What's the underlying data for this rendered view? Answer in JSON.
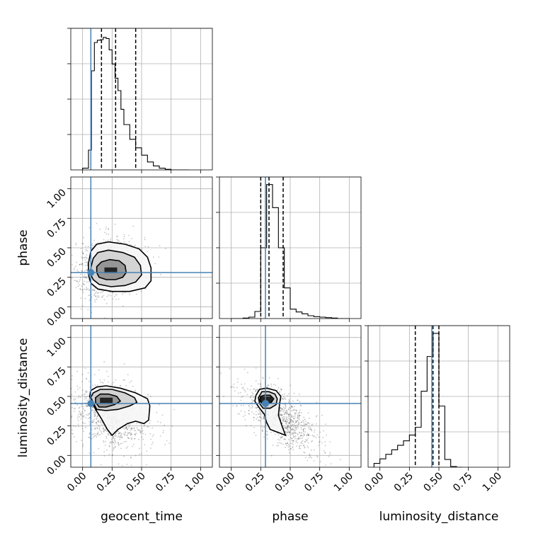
{
  "colors": {
    "truth": "#4682b4",
    "hist": "#000000",
    "grid": "#b0b0b0",
    "density": "#000000"
  },
  "chart_data": {
    "type": "corner",
    "parameters": [
      "geocent_time",
      "phase",
      "luminosity_distance"
    ],
    "axis_range": [
      -0.1,
      1.1
    ],
    "ticks": [
      0.0,
      0.25,
      0.5,
      0.75,
      1.0
    ],
    "tick_labels": [
      "0.00",
      "0.25",
      "0.50",
      "0.75",
      "1.00"
    ],
    "truths": [
      0.07,
      0.29,
      0.44
    ],
    "grid": true,
    "diagonal": [
      {
        "parameter": "geocent_time",
        "bin_edges": [
          0.0,
          0.05,
          0.075,
          0.1,
          0.125,
          0.15,
          0.175,
          0.2,
          0.225,
          0.25,
          0.275,
          0.3,
          0.325,
          0.35,
          0.4,
          0.45,
          0.5,
          0.55,
          0.6,
          0.65,
          0.7,
          0.75,
          0.8,
          0.85,
          0.9
        ],
        "counts": [
          0.3,
          3.5,
          17.5,
          22.5,
          22.9,
          23.0,
          23.4,
          23.2,
          21.2,
          18.7,
          16.2,
          14.0,
          10.7,
          8.0,
          5.4,
          3.9,
          2.6,
          1.4,
          0.7,
          0.3,
          0.1,
          0.0,
          0.0,
          0.0
        ],
        "ymax": 25,
        "quantiles": [
          0.16,
          0.28,
          0.45
        ]
      },
      {
        "parameter": "phase",
        "bin_edges": [
          0.0,
          0.05,
          0.1,
          0.15,
          0.2,
          0.25,
          0.3,
          0.35,
          0.4,
          0.45,
          0.5,
          0.55,
          0.6,
          0.65,
          0.7,
          0.75,
          0.8,
          0.85,
          0.9,
          0.95,
          1.0
        ],
        "counts": [
          0.0,
          0.0,
          0.1,
          0.3,
          1.5,
          15.0,
          28.4,
          23.5,
          15.0,
          6.5,
          2.0,
          1.4,
          1.0,
          0.6,
          0.4,
          0.3,
          0.2,
          0.1,
          0.0,
          0.0
        ],
        "ymax": 30,
        "quantiles": [
          0.25,
          0.32,
          0.44
        ]
      },
      {
        "parameter": "luminosity_distance",
        "bin_edges": [
          -0.05,
          0.0,
          0.05,
          0.1,
          0.15,
          0.2,
          0.25,
          0.3,
          0.35,
          0.4,
          0.45,
          0.5,
          0.55,
          0.6,
          0.65,
          0.7
        ],
        "counts": [
          0.6,
          1.3,
          2.0,
          2.7,
          3.4,
          4.1,
          5.0,
          6.2,
          11.8,
          17.2,
          20.8,
          9.5,
          1.2,
          0.1,
          0.0
        ],
        "ymax": 22,
        "quantiles": [
          0.3,
          0.45,
          0.5
        ]
      }
    ],
    "joint": [
      {
        "x": "geocent_time",
        "y": "phase",
        "center": [
          0.22,
          0.33
        ],
        "spread": [
          0.15,
          0.13
        ],
        "rho": 0.15,
        "contours": [
          {
            "level": 1,
            "points": [
              [
                0.14,
                0.25
              ],
              [
                0.2,
                0.23
              ],
              [
                0.28,
                0.23
              ],
              [
                0.34,
                0.25
              ],
              [
                0.37,
                0.29
              ],
              [
                0.36,
                0.35
              ],
              [
                0.31,
                0.39
              ],
              [
                0.23,
                0.4
              ],
              [
                0.16,
                0.38
              ],
              [
                0.12,
                0.34
              ],
              [
                0.12,
                0.29
              ]
            ]
          },
          {
            "level": 2,
            "points": [
              [
                0.09,
                0.23
              ],
              [
                0.14,
                0.19
              ],
              [
                0.24,
                0.17
              ],
              [
                0.36,
                0.18
              ],
              [
                0.45,
                0.21
              ],
              [
                0.5,
                0.27
              ],
              [
                0.49,
                0.35
              ],
              [
                0.44,
                0.42
              ],
              [
                0.34,
                0.46
              ],
              [
                0.22,
                0.48
              ],
              [
                0.13,
                0.46
              ],
              [
                0.09,
                0.41
              ],
              [
                0.07,
                0.33
              ],
              [
                0.07,
                0.27
              ]
            ]
          },
          {
            "level": 3,
            "points": [
              [
                0.07,
                0.2
              ],
              [
                0.13,
                0.15
              ],
              [
                0.25,
                0.13
              ],
              [
                0.4,
                0.13
              ],
              [
                0.53,
                0.16
              ],
              [
                0.58,
                0.22
              ],
              [
                0.58,
                0.33
              ],
              [
                0.55,
                0.42
              ],
              [
                0.48,
                0.49
              ],
              [
                0.36,
                0.53
              ],
              [
                0.22,
                0.55
              ],
              [
                0.12,
                0.53
              ],
              [
                0.07,
                0.47
              ],
              [
                0.05,
                0.37
              ],
              [
                0.05,
                0.27
              ]
            ]
          }
        ]
      },
      {
        "x": "geocent_time",
        "y": "luminosity_distance",
        "center": [
          0.24,
          0.33
        ],
        "spread": [
          0.17,
          0.15
        ],
        "rho": -0.3,
        "contours": [
          {
            "level": 1,
            "points": [
              [
                0.11,
                0.45
              ],
              [
                0.14,
                0.41
              ],
              [
                0.2,
                0.41
              ],
              [
                0.27,
                0.43
              ],
              [
                0.32,
                0.46
              ],
              [
                0.29,
                0.5
              ],
              [
                0.22,
                0.52
              ],
              [
                0.15,
                0.52
              ],
              [
                0.11,
                0.49
              ]
            ]
          },
          {
            "level": 2,
            "points": [
              [
                0.09,
                0.45
              ],
              [
                0.12,
                0.39
              ],
              [
                0.2,
                0.38
              ],
              [
                0.3,
                0.39
              ],
              [
                0.4,
                0.42
              ],
              [
                0.46,
                0.45
              ],
              [
                0.44,
                0.49
              ],
              [
                0.36,
                0.53
              ],
              [
                0.25,
                0.56
              ],
              [
                0.15,
                0.56
              ],
              [
                0.09,
                0.53
              ],
              [
                0.07,
                0.49
              ]
            ]
          },
          {
            "level": 3,
            "points": [
              [
                0.06,
                0.5
              ],
              [
                0.08,
                0.45
              ],
              [
                0.11,
                0.39
              ],
              [
                0.16,
                0.31
              ],
              [
                0.21,
                0.22
              ],
              [
                0.25,
                0.17
              ],
              [
                0.3,
                0.22
              ],
              [
                0.38,
                0.27
              ],
              [
                0.45,
                0.29
              ],
              [
                0.52,
                0.27
              ],
              [
                0.56,
                0.3
              ],
              [
                0.57,
                0.42
              ],
              [
                0.55,
                0.48
              ],
              [
                0.45,
                0.53
              ],
              [
                0.32,
                0.57
              ],
              [
                0.2,
                0.59
              ],
              [
                0.12,
                0.58
              ],
              [
                0.07,
                0.55
              ]
            ]
          }
        ]
      },
      {
        "x": "phase",
        "y": "luminosity_distance",
        "center": [
          0.42,
          0.32
        ],
        "spread": [
          0.16,
          0.15
        ],
        "rho": -0.65,
        "contours": [
          {
            "level": 1,
            "points": [
              [
                0.24,
                0.47
              ],
              [
                0.26,
                0.44
              ],
              [
                0.3,
                0.44
              ],
              [
                0.34,
                0.45
              ],
              [
                0.36,
                0.48
              ],
              [
                0.33,
                0.51
              ],
              [
                0.28,
                0.51
              ],
              [
                0.25,
                0.5
              ]
            ]
          },
          {
            "level": 2,
            "points": [
              [
                0.23,
                0.49
              ],
              [
                0.24,
                0.44
              ],
              [
                0.27,
                0.4
              ],
              [
                0.33,
                0.4
              ],
              [
                0.38,
                0.43
              ],
              [
                0.39,
                0.48
              ],
              [
                0.37,
                0.52
              ],
              [
                0.32,
                0.54
              ],
              [
                0.26,
                0.54
              ]
            ]
          },
          {
            "level": 3,
            "points": [
              [
                0.21,
                0.51
              ],
              [
                0.2,
                0.46
              ],
              [
                0.24,
                0.4
              ],
              [
                0.28,
                0.35
              ],
              [
                0.3,
                0.28
              ],
              [
                0.33,
                0.22
              ],
              [
                0.41,
                0.19
              ],
              [
                0.46,
                0.17
              ],
              [
                0.43,
                0.25
              ],
              [
                0.4,
                0.34
              ],
              [
                0.41,
                0.44
              ],
              [
                0.42,
                0.5
              ],
              [
                0.38,
                0.55
              ],
              [
                0.3,
                0.57
              ],
              [
                0.24,
                0.56
              ]
            ]
          }
        ]
      }
    ]
  }
}
